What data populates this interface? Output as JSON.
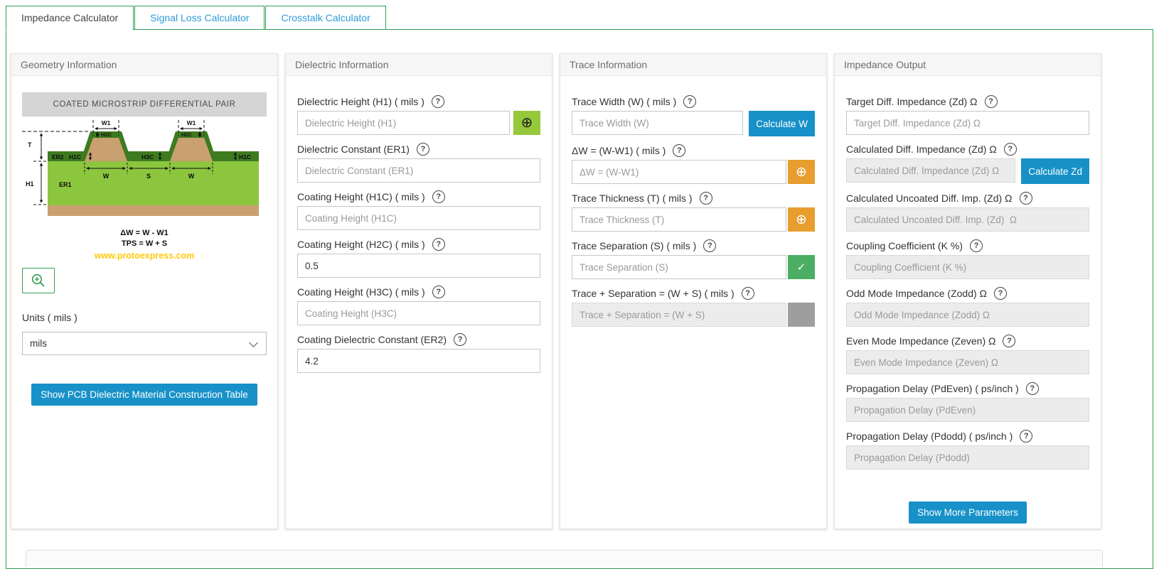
{
  "icons": {
    "help": "?",
    "plus": "⊕",
    "check": "✓"
  },
  "colors": {
    "accent_green": "#2D9E52",
    "accent_blue": "#1791C8",
    "tab_text_blue": "#2E9BD8",
    "orange": "#E79E2E",
    "confirm_green": "#4CAE64",
    "lime_green": "#96C83C",
    "diagram_substrate": "#8CC63F",
    "diagram_coating": "#3E7B20",
    "diagram_copper": "#C9A06F",
    "website_yellow": "#FFC908"
  },
  "tabs": [
    {
      "label": "Impedance Calculator",
      "active": true
    },
    {
      "label": "Signal Loss Calculator",
      "active": false
    },
    {
      "label": "Crosstalk Calculator",
      "active": false
    }
  ],
  "geometry_panel": {
    "title": "Geometry Information",
    "diagram": {
      "title": "COATED MICROSTRIP DIFFERENTIAL PAIR",
      "labels": {
        "w1": "W1",
        "h2c": "H2C",
        "h1c": "H1C",
        "er2": "ER2",
        "t": "T",
        "h3c": "H3C",
        "h1": "H1",
        "er1": "ER1",
        "w": "W",
        "s": "S"
      },
      "formula_line1": "ΔW = W - W1",
      "formula_line2": "TPS = W + S",
      "website": "www.protoexpress.com"
    },
    "units_label": "Units ( mils )",
    "units_value": "mils",
    "table_button_label": "Show PCB Dielectric Material Construction Table"
  },
  "dielectric_panel": {
    "title": "Dielectric Information",
    "fields": [
      {
        "name": "dielectric-height-h1",
        "label": "Dielectric Height (H1) ( mils )",
        "placeholder": "Dielectric Height (H1)",
        "addon": "greenplus"
      },
      {
        "name": "dielectric-constant-er1",
        "label": "Dielectric Constant (ER1)",
        "placeholder": "Dielectric Constant (ER1)"
      },
      {
        "name": "coating-height-h1c",
        "label": "Coating Height (H1C) ( mils )",
        "placeholder": "Coating Height (H1C)"
      },
      {
        "name": "coating-height-h2c",
        "label": "Coating Height (H2C) ( mils )",
        "value": "0.5"
      },
      {
        "name": "coating-height-h3c",
        "label": "Coating Height (H3C) ( mils )",
        "placeholder": "Coating Height (H3C)"
      },
      {
        "name": "coating-dielectric-constant-er2",
        "label": "Coating Dielectric Constant (ER2)",
        "value": "4.2"
      }
    ]
  },
  "trace_panel": {
    "title": "Trace Information",
    "fields": [
      {
        "name": "trace-width-w",
        "label": "Trace Width (W) ( mils )",
        "placeholder": "Trace Width (W)",
        "calc": "Calculate W",
        "calc_name": "calculate-w-button"
      },
      {
        "name": "delta-w",
        "label": "ΔW = (W-W1) ( mils )",
        "placeholder": "ΔW = (W-W1)",
        "addon": "orange"
      },
      {
        "name": "trace-thickness-t",
        "label": "Trace Thickness (T) ( mils )",
        "placeholder": "Trace Thickness (T)",
        "addon": "orange"
      },
      {
        "name": "trace-separation-s",
        "label": "Trace Separation (S) ( mils )",
        "placeholder": "Trace Separation (S)",
        "addon": "teal"
      },
      {
        "name": "trace-plus-separation",
        "label": "Trace + Separation = (W + S) ( mils )",
        "placeholder": "Trace + Separation = (W + S)",
        "disabled": true,
        "addon": "gray"
      }
    ]
  },
  "impedance_panel": {
    "title": "Impedance Output",
    "fields": [
      {
        "name": "target-diff-impedance",
        "label": "Target Diff. Impedance (Zd) Ω",
        "placeholder": "Target Diff. Impedance (Zd) Ω"
      },
      {
        "name": "calculated-diff-impedance",
        "label": "Calculated Diff. Impedance (Zd) Ω",
        "placeholder": "Calculated Diff. Impedance (Zd) Ω",
        "disabled": true,
        "calc": "Calculate Zd",
        "calc_name": "calculate-zd-button"
      },
      {
        "name": "calculated-uncoated-diff-imp",
        "label": "Calculated Uncoated Diff. Imp. (Zd) Ω",
        "placeholder": "Calculated Uncoated Diff. Imp. (Zd)  Ω",
        "disabled": true
      },
      {
        "name": "coupling-coefficient",
        "label": "Coupling Coefficient (K %)",
        "placeholder": "Coupling Coefficient (K %)",
        "disabled": true
      },
      {
        "name": "odd-mode-impedance",
        "label": "Odd Mode Impedance (Zodd) Ω",
        "placeholder": "Odd Mode Impedance (Zodd) Ω",
        "disabled": true
      },
      {
        "name": "even-mode-impedance",
        "label": "Even Mode Impedance (Zeven) Ω",
        "placeholder": "Even Mode Impedance (Zeven) Ω",
        "disabled": true
      },
      {
        "name": "propagation-delay-pdeven",
        "label": "Propagation Delay (PdEven) ( ps/inch )",
        "placeholder": "Propagation Delay (PdEven)",
        "disabled": true
      },
      {
        "name": "propagation-delay-pdodd",
        "label": "Propagation Delay (Pdodd) ( ps/inch )",
        "placeholder": "Propagation Delay (Pdodd)",
        "disabled": true
      }
    ],
    "show_more_label": "Show More Parameters"
  }
}
